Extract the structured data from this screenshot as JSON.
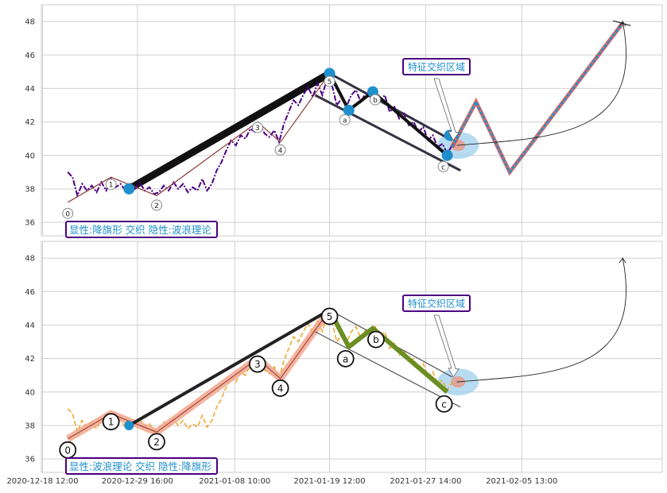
{
  "chart_data": [
    {
      "type": "line",
      "title": "",
      "xlabel": "",
      "ylabel": "",
      "ylim": [
        35.2,
        49
      ],
      "yticks": [
        36,
        38,
        40,
        42,
        44,
        46,
        48
      ],
      "grid": true,
      "annotation_box": "显性:降旗形 交织 隐性:波浪理论",
      "region_label": "特征交织区域",
      "colors": {
        "price": "#4b0082",
        "wave": "#8b3a3a",
        "arrow_fill": "#1f8fcc",
        "arrow_edge": "#c43b3b",
        "box_text": "#1f8fcc",
        "box_edge": "#4b0082",
        "flag": "#333344",
        "region": "#9fd0ec"
      },
      "wave_points": [
        {
          "label": "0",
          "x": 0.0,
          "y": 37.2
        },
        {
          "label": "1",
          "x": 3.6,
          "y": 38.7
        },
        {
          "label": "2",
          "x": 7.4,
          "y": 37.6
        },
        {
          "label": "3",
          "x": 15.8,
          "y": 42.0
        },
        {
          "label": "4",
          "x": 17.7,
          "y": 40.8
        },
        {
          "label": "5",
          "x": 21.8,
          "y": 44.9
        },
        {
          "label": "a",
          "x": 23.4,
          "y": 42.7
        },
        {
          "label": "b",
          "x": 25.4,
          "y": 43.8
        },
        {
          "label": "c",
          "x": 31.6,
          "y": 40.0
        }
      ],
      "projection": [
        {
          "x": 32.0,
          "y": 40.5
        },
        {
          "x": 34.0,
          "y": 43.2
        },
        {
          "x": 36.8,
          "y": 39.0
        },
        {
          "x": 46.2,
          "y": 47.9
        }
      ],
      "flag_pole": {
        "x": [
          5.1,
          21.8
        ],
        "y": [
          38.0,
          44.9
        ]
      },
      "flag_upper": {
        "x": [
          21.8,
          32.0
        ],
        "y": [
          44.9,
          40.9
        ]
      },
      "flag_lower": {
        "x": [
          20.6,
          32.7
        ],
        "y": [
          43.6,
          39.1
        ]
      },
      "markers": [
        {
          "x": 5.1,
          "y": 38.0
        },
        {
          "x": 21.8,
          "y": 44.9
        },
        {
          "x": 23.4,
          "y": 42.7
        },
        {
          "x": 25.4,
          "y": 43.8
        },
        {
          "x": 31.6,
          "y": 40.0
        },
        {
          "x": 31.8,
          "y": 41.2
        }
      ],
      "region_center": {
        "x": 32.5,
        "y": 40.6
      },
      "curve": [
        {
          "x": 32.4,
          "y": 40.6
        },
        {
          "x": 46.2,
          "y": 48.0
        }
      ],
      "price_series": [
        {
          "x": 0.0,
          "y": 39.0
        },
        {
          "x": 0.4,
          "y": 38.7
        },
        {
          "x": 0.8,
          "y": 37.6
        },
        {
          "x": 1.2,
          "y": 38.3
        },
        {
          "x": 1.6,
          "y": 37.9
        },
        {
          "x": 2.0,
          "y": 38.2
        },
        {
          "x": 2.4,
          "y": 37.8
        },
        {
          "x": 2.8,
          "y": 38.4
        },
        {
          "x": 3.2,
          "y": 37.9
        },
        {
          "x": 3.6,
          "y": 38.6
        },
        {
          "x": 4.0,
          "y": 38.1
        },
        {
          "x": 4.4,
          "y": 38.3
        },
        {
          "x": 4.8,
          "y": 37.9
        },
        {
          "x": 5.2,
          "y": 38.3
        },
        {
          "x": 5.6,
          "y": 38.0
        },
        {
          "x": 6.0,
          "y": 38.4
        },
        {
          "x": 6.4,
          "y": 37.9
        },
        {
          "x": 6.8,
          "y": 38.1
        },
        {
          "x": 7.2,
          "y": 37.7
        },
        {
          "x": 7.6,
          "y": 37.8
        },
        {
          "x": 8.0,
          "y": 38.2
        },
        {
          "x": 8.4,
          "y": 37.9
        },
        {
          "x": 8.8,
          "y": 38.4
        },
        {
          "x": 9.2,
          "y": 38.0
        },
        {
          "x": 9.6,
          "y": 38.3
        },
        {
          "x": 10.0,
          "y": 37.8
        },
        {
          "x": 10.4,
          "y": 38.1
        },
        {
          "x": 10.8,
          "y": 37.9
        },
        {
          "x": 11.2,
          "y": 38.6
        },
        {
          "x": 11.6,
          "y": 37.9
        },
        {
          "x": 12.0,
          "y": 38.3
        },
        {
          "x": 12.4,
          "y": 39.1
        },
        {
          "x": 12.8,
          "y": 39.6
        },
        {
          "x": 13.2,
          "y": 40.3
        },
        {
          "x": 13.6,
          "y": 40.9
        },
        {
          "x": 14.0,
          "y": 40.6
        },
        {
          "x": 14.4,
          "y": 41.2
        },
        {
          "x": 14.8,
          "y": 41.0
        },
        {
          "x": 15.2,
          "y": 41.6
        },
        {
          "x": 15.6,
          "y": 41.4
        },
        {
          "x": 16.0,
          "y": 41.8
        },
        {
          "x": 16.4,
          "y": 41.3
        },
        {
          "x": 16.8,
          "y": 41.1
        },
        {
          "x": 17.2,
          "y": 41.5
        },
        {
          "x": 17.6,
          "y": 40.8
        },
        {
          "x": 18.0,
          "y": 41.9
        },
        {
          "x": 18.4,
          "y": 42.6
        },
        {
          "x": 18.8,
          "y": 43.3
        },
        {
          "x": 19.2,
          "y": 43.0
        },
        {
          "x": 19.6,
          "y": 43.6
        },
        {
          "x": 20.0,
          "y": 44.1
        },
        {
          "x": 20.4,
          "y": 43.5
        },
        {
          "x": 20.8,
          "y": 44.3
        },
        {
          "x": 21.2,
          "y": 43.6
        },
        {
          "x": 21.6,
          "y": 44.6
        },
        {
          "x": 22.0,
          "y": 44.2
        },
        {
          "x": 22.4,
          "y": 43.0
        },
        {
          "x": 22.8,
          "y": 43.4
        },
        {
          "x": 23.2,
          "y": 42.9
        },
        {
          "x": 23.6,
          "y": 43.6
        },
        {
          "x": 24.0,
          "y": 43.9
        },
        {
          "x": 24.4,
          "y": 43.2
        },
        {
          "x": 24.8,
          "y": 43.7
        },
        {
          "x": 25.2,
          "y": 43.5
        },
        {
          "x": 25.6,
          "y": 43.9
        },
        {
          "x": 26.0,
          "y": 43.3
        },
        {
          "x": 26.4,
          "y": 43.6
        },
        {
          "x": 26.8,
          "y": 42.6
        },
        {
          "x": 27.2,
          "y": 42.9
        },
        {
          "x": 27.6,
          "y": 42.2
        },
        {
          "x": 28.0,
          "y": 42.5
        },
        {
          "x": 28.4,
          "y": 41.8
        },
        {
          "x": 28.8,
          "y": 42.0
        },
        {
          "x": 29.2,
          "y": 41.4
        },
        {
          "x": 29.6,
          "y": 41.7
        },
        {
          "x": 30.0,
          "y": 40.9
        },
        {
          "x": 30.4,
          "y": 41.2
        },
        {
          "x": 30.8,
          "y": 40.5
        },
        {
          "x": 31.2,
          "y": 40.7
        },
        {
          "x": 31.6,
          "y": 40.1
        },
        {
          "x": 32.0,
          "y": 40.6
        }
      ]
    },
    {
      "type": "line",
      "title": "",
      "xlabel": "",
      "ylabel": "",
      "ylim": [
        35.2,
        49
      ],
      "yticks": [
        36,
        38,
        40,
        42,
        44,
        46,
        48
      ],
      "xticks": [
        "2020-12-18 12:00",
        "2020-12-29 16:00",
        "2021-01-08 10:00",
        "2021-01-19 12:00",
        "2021-01-27 14:00",
        "2021-02-05 13:00"
      ],
      "grid": true,
      "annotation_box": "显性:波浪理论 交织 隐性:降旗形",
      "region_label": "特征交织区域",
      "colors": {
        "price": "#f0a830",
        "wave": "#f4a58a",
        "impulse": "#222222",
        "correction": "#6b8e23",
        "box_text": "#1f8fcc",
        "box_edge": "#4b0082",
        "channel": "#555555",
        "region": "#9fd0ec",
        "marker": "#1f8fcc"
      },
      "wave_points": [
        {
          "label": "0",
          "x": 0.0,
          "y": 37.2
        },
        {
          "label": "1",
          "x": 3.6,
          "y": 38.7
        },
        {
          "label": "2",
          "x": 7.4,
          "y": 37.6
        },
        {
          "label": "3",
          "x": 15.8,
          "y": 42.0
        },
        {
          "label": "4",
          "x": 17.7,
          "y": 40.8
        },
        {
          "label": "5",
          "x": 21.8,
          "y": 44.9
        },
        {
          "label": "a",
          "x": 23.4,
          "y": 42.7
        },
        {
          "label": "b",
          "x": 25.4,
          "y": 43.8
        },
        {
          "label": "c",
          "x": 31.6,
          "y": 40.0
        }
      ],
      "impulse_line": {
        "x": [
          5.1,
          21.8
        ],
        "y": [
          38.0,
          44.9
        ]
      },
      "channel_upper": {
        "x": [
          21.8,
          32.0
        ],
        "y": [
          44.9,
          40.9
        ]
      },
      "channel_lower": {
        "x": [
          20.6,
          32.7
        ],
        "y": [
          43.6,
          39.1
        ]
      },
      "markers": [
        {
          "x": 5.1,
          "y": 38.0
        }
      ],
      "region_center": {
        "x": 32.5,
        "y": 40.6
      },
      "curve": [
        {
          "x": 32.4,
          "y": 40.6
        },
        {
          "x": 46.2,
          "y": 48.0
        }
      ],
      "price_series": [
        {
          "x": 0.0,
          "y": 39.0
        },
        {
          "x": 0.4,
          "y": 38.7
        },
        {
          "x": 0.8,
          "y": 37.6
        },
        {
          "x": 1.2,
          "y": 38.3
        },
        {
          "x": 1.6,
          "y": 37.9
        },
        {
          "x": 2.0,
          "y": 38.2
        },
        {
          "x": 2.4,
          "y": 37.8
        },
        {
          "x": 2.8,
          "y": 38.4
        },
        {
          "x": 3.2,
          "y": 37.9
        },
        {
          "x": 3.6,
          "y": 38.6
        },
        {
          "x": 4.0,
          "y": 38.1
        },
        {
          "x": 4.4,
          "y": 38.3
        },
        {
          "x": 4.8,
          "y": 37.9
        },
        {
          "x": 5.2,
          "y": 38.3
        },
        {
          "x": 5.6,
          "y": 38.0
        },
        {
          "x": 6.0,
          "y": 38.4
        },
        {
          "x": 6.4,
          "y": 37.9
        },
        {
          "x": 6.8,
          "y": 38.1
        },
        {
          "x": 7.2,
          "y": 37.7
        },
        {
          "x": 7.6,
          "y": 37.8
        },
        {
          "x": 8.0,
          "y": 38.2
        },
        {
          "x": 8.4,
          "y": 37.9
        },
        {
          "x": 8.8,
          "y": 38.4
        },
        {
          "x": 9.2,
          "y": 38.0
        },
        {
          "x": 9.6,
          "y": 38.3
        },
        {
          "x": 10.0,
          "y": 37.8
        },
        {
          "x": 10.4,
          "y": 38.1
        },
        {
          "x": 10.8,
          "y": 37.9
        },
        {
          "x": 11.2,
          "y": 38.6
        },
        {
          "x": 11.6,
          "y": 37.9
        },
        {
          "x": 12.0,
          "y": 38.3
        },
        {
          "x": 12.4,
          "y": 39.1
        },
        {
          "x": 12.8,
          "y": 39.6
        },
        {
          "x": 13.2,
          "y": 40.3
        },
        {
          "x": 13.6,
          "y": 40.9
        },
        {
          "x": 14.0,
          "y": 40.6
        },
        {
          "x": 14.4,
          "y": 41.2
        },
        {
          "x": 14.8,
          "y": 41.0
        },
        {
          "x": 15.2,
          "y": 41.6
        },
        {
          "x": 15.6,
          "y": 41.4
        },
        {
          "x": 16.0,
          "y": 41.8
        },
        {
          "x": 16.4,
          "y": 41.3
        },
        {
          "x": 16.8,
          "y": 41.1
        },
        {
          "x": 17.2,
          "y": 41.5
        },
        {
          "x": 17.6,
          "y": 40.8
        },
        {
          "x": 18.0,
          "y": 41.9
        },
        {
          "x": 18.4,
          "y": 42.6
        },
        {
          "x": 18.8,
          "y": 43.3
        },
        {
          "x": 19.2,
          "y": 43.0
        },
        {
          "x": 19.6,
          "y": 43.6
        },
        {
          "x": 20.0,
          "y": 44.1
        },
        {
          "x": 20.4,
          "y": 43.5
        },
        {
          "x": 20.8,
          "y": 44.3
        },
        {
          "x": 21.2,
          "y": 43.6
        },
        {
          "x": 21.6,
          "y": 44.6
        },
        {
          "x": 22.0,
          "y": 44.2
        },
        {
          "x": 22.4,
          "y": 43.0
        },
        {
          "x": 22.8,
          "y": 43.4
        },
        {
          "x": 23.2,
          "y": 42.9
        },
        {
          "x": 23.6,
          "y": 43.6
        },
        {
          "x": 24.0,
          "y": 43.9
        },
        {
          "x": 24.4,
          "y": 43.2
        },
        {
          "x": 24.8,
          "y": 43.7
        },
        {
          "x": 25.2,
          "y": 43.5
        },
        {
          "x": 25.6,
          "y": 43.9
        },
        {
          "x": 26.0,
          "y": 43.3
        },
        {
          "x": 26.4,
          "y": 43.6
        },
        {
          "x": 26.8,
          "y": 42.6
        },
        {
          "x": 27.2,
          "y": 42.9
        },
        {
          "x": 27.6,
          "y": 42.2
        },
        {
          "x": 28.0,
          "y": 42.5
        },
        {
          "x": 28.4,
          "y": 41.8
        },
        {
          "x": 28.8,
          "y": 42.0
        },
        {
          "x": 29.2,
          "y": 41.4
        },
        {
          "x": 29.6,
          "y": 41.7
        },
        {
          "x": 30.0,
          "y": 40.9
        },
        {
          "x": 30.4,
          "y": 41.2
        },
        {
          "x": 30.8,
          "y": 40.5
        },
        {
          "x": 31.2,
          "y": 40.7
        },
        {
          "x": 31.6,
          "y": 40.1
        },
        {
          "x": 32.0,
          "y": 40.6
        }
      ]
    }
  ]
}
